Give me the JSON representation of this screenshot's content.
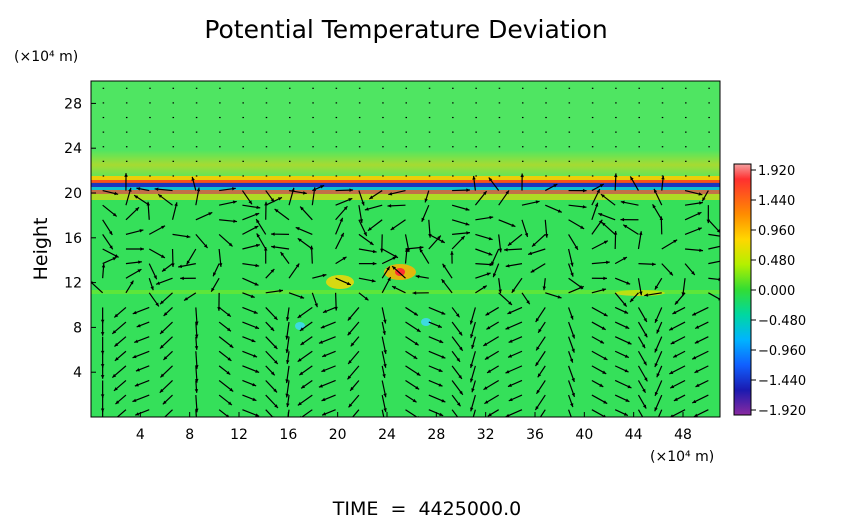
{
  "chart_data": {
    "type": "heatmap",
    "title": "Potential Temperature Deviation",
    "ylabel": "Height",
    "xunit": "(×10⁴ m)",
    "yunit": "(×10⁴ m)",
    "xlim": [
      0,
      51
    ],
    "ylim": [
      0,
      30
    ],
    "xticks": [
      4,
      8,
      12,
      16,
      20,
      24,
      28,
      32,
      36,
      40,
      44,
      48
    ],
    "yticks": [
      4,
      8,
      12,
      16,
      20,
      24,
      28
    ],
    "colorbar": {
      "ticks": [
        "1.920",
        "1.440",
        "0.960",
        "0.480",
        "0.000",
        "−0.480",
        "−0.960",
        "−1.440",
        "−1.920"
      ],
      "range": [
        -1.92,
        1.92
      ]
    },
    "footer": "TIME  =  4425000.0",
    "colors": {
      "background_field": "#35e05a",
      "warm": "#ff3a1a",
      "cold": "#1a22c8"
    }
  }
}
